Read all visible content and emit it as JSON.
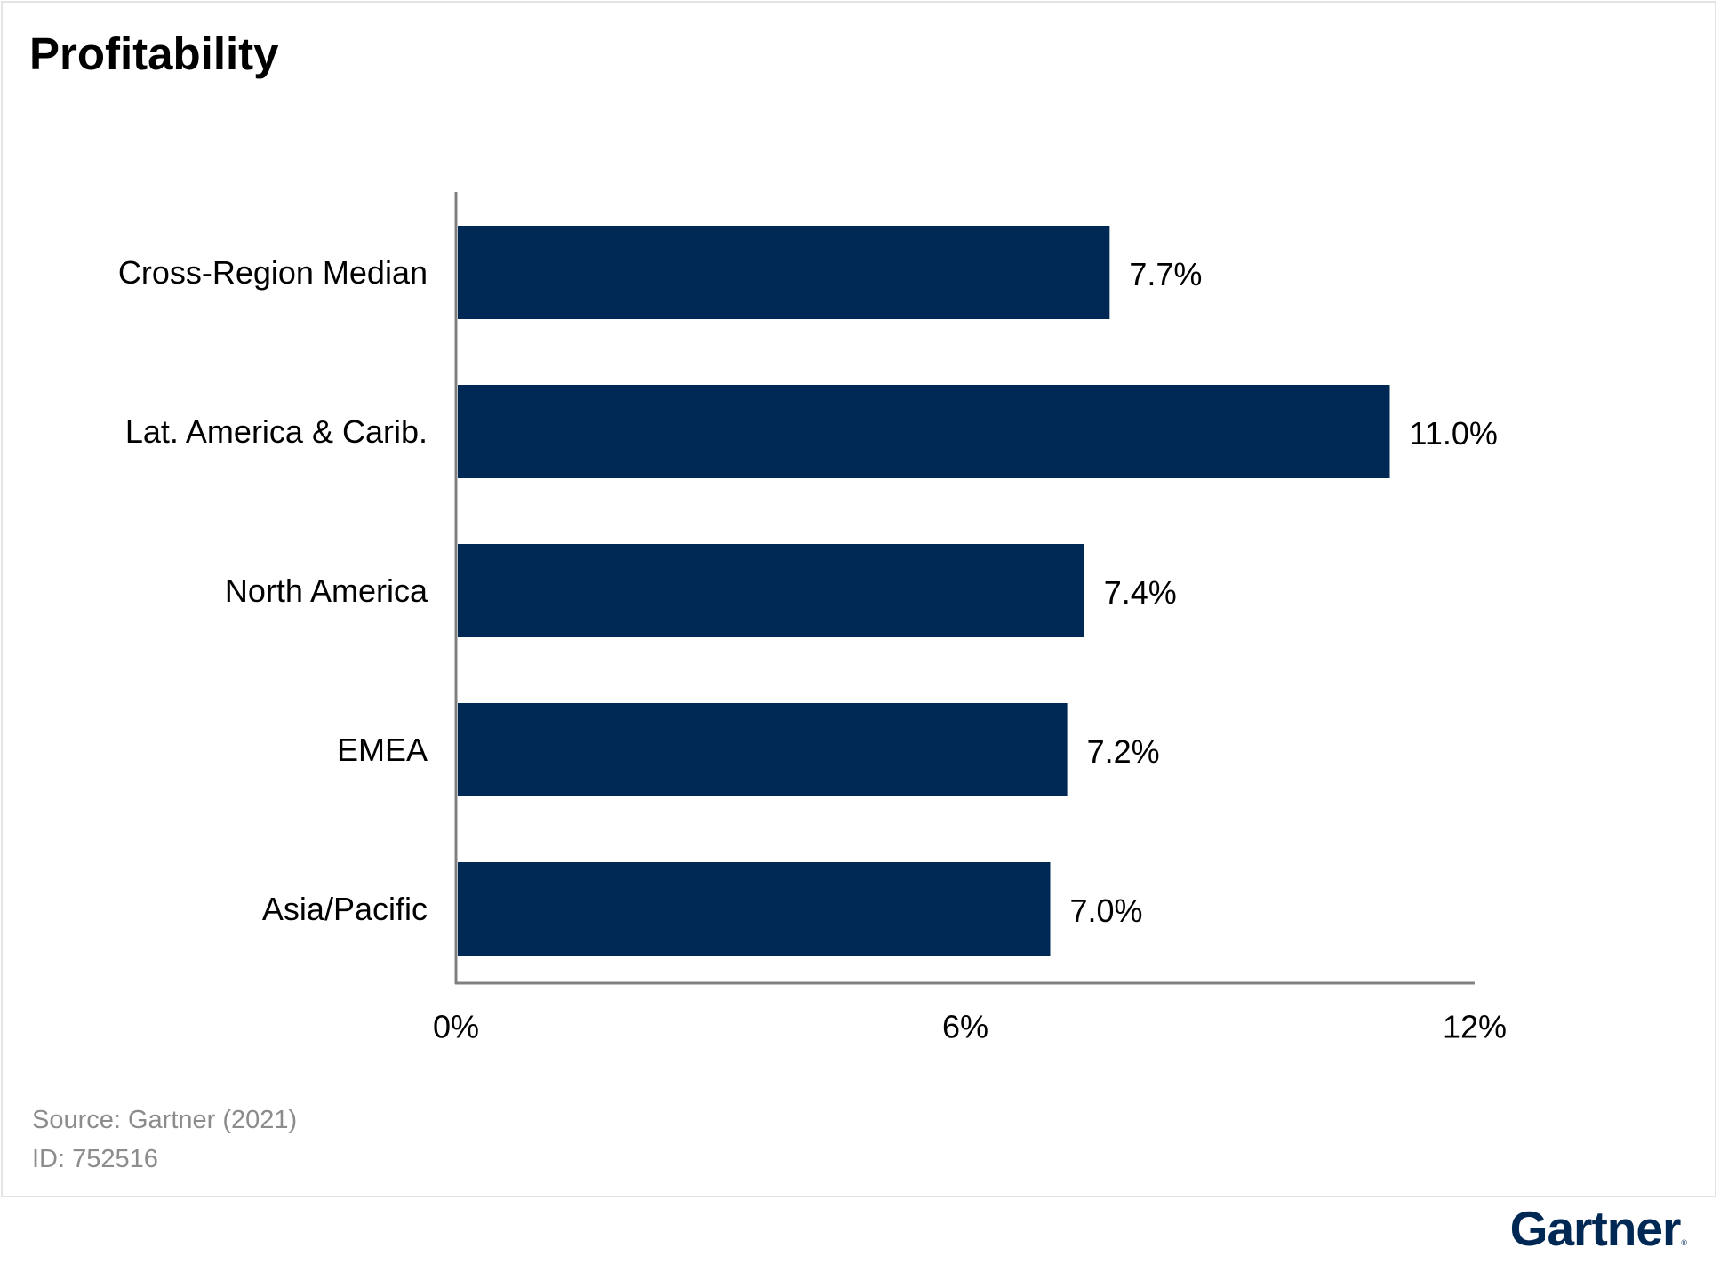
{
  "colors": {
    "bar": "#002855",
    "axis": "#808080",
    "text": "#000000",
    "footnote": "#8c8c8c",
    "logo": "#002855"
  },
  "chart_data": {
    "type": "bar",
    "orientation": "horizontal",
    "title": "Profitability",
    "categories": [
      "Cross-Region Median",
      "Lat. America & Carib.",
      "North America",
      "EMEA",
      "Asia/Pacific"
    ],
    "values": [
      7.7,
      11.0,
      7.4,
      7.2,
      7.0
    ],
    "data_labels": [
      "7.7%",
      "11.0%",
      "7.4%",
      "7.2%",
      "7.0%"
    ],
    "xlim": [
      0,
      12
    ],
    "xticks": [
      0,
      6,
      12
    ],
    "xtick_labels": [
      "0%",
      "6%",
      "12%"
    ],
    "xlabel": "",
    "ylabel": "",
    "grid": false,
    "legend": "none"
  },
  "footer": {
    "source": "Source: Gartner (2021)",
    "id": "ID: 752516",
    "logo_text": "Gartner",
    "logo_mark": "®"
  }
}
